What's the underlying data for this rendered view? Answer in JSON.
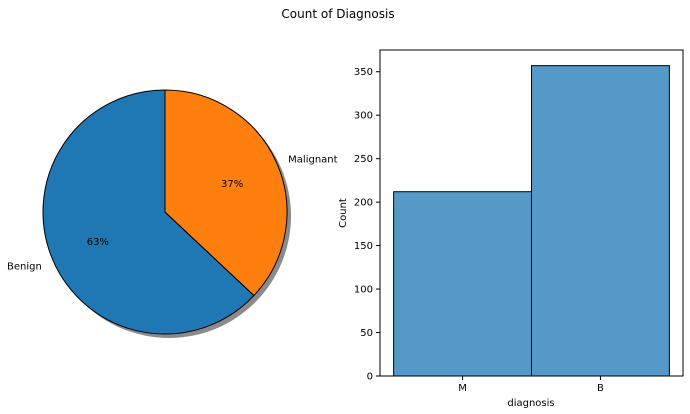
{
  "suptitle": "Count of Diagnosis",
  "chart_data": [
    {
      "type": "pie",
      "labels": [
        "Benign",
        "Malignant"
      ],
      "values": [
        63,
        37
      ],
      "pct_labels": [
        "63%",
        "37%"
      ],
      "colors": [
        "#1f77b4",
        "#ff7f0e"
      ],
      "shadow": true,
      "startangle": 90
    },
    {
      "type": "bar",
      "categories": [
        "M",
        "B"
      ],
      "values": [
        212,
        357
      ],
      "xlabel": "diagnosis",
      "ylabel": "Count",
      "ylim": [
        0,
        375
      ],
      "yticks": [
        "0",
        "50",
        "100",
        "150",
        "200",
        "250",
        "300",
        "350"
      ],
      "color": "#5499c7"
    }
  ]
}
